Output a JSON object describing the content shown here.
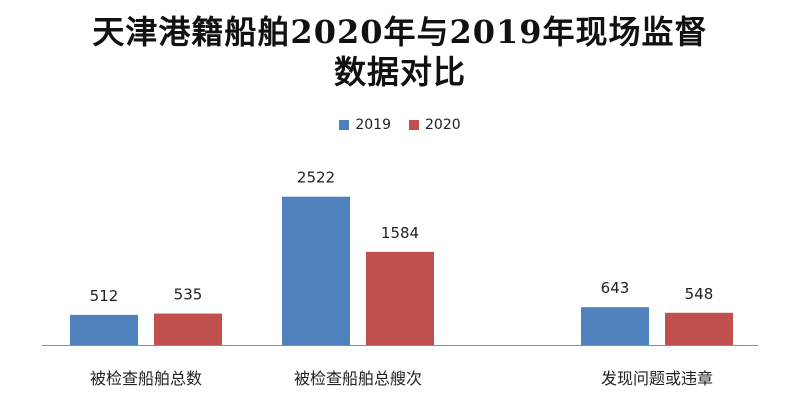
{
  "chart_data": {
    "type": "bar",
    "title_lines": [
      "天津港籍船舶2020年与2019年现场监督",
      "数据对比"
    ],
    "categories": [
      "被检查船舶总数",
      "被检查船舶总艘次",
      "发现问题或违章"
    ],
    "series": [
      {
        "name": "2019",
        "values": [
          512,
          2522,
          643
        ],
        "color": "#4F81BD"
      },
      {
        "name": "2020",
        "values": [
          535,
          1584,
          548
        ],
        "color": "#C0504D"
      }
    ],
    "ylim": [
      0,
      3000
    ],
    "grid": false,
    "legend_position": "top-center",
    "data_labels": true
  }
}
